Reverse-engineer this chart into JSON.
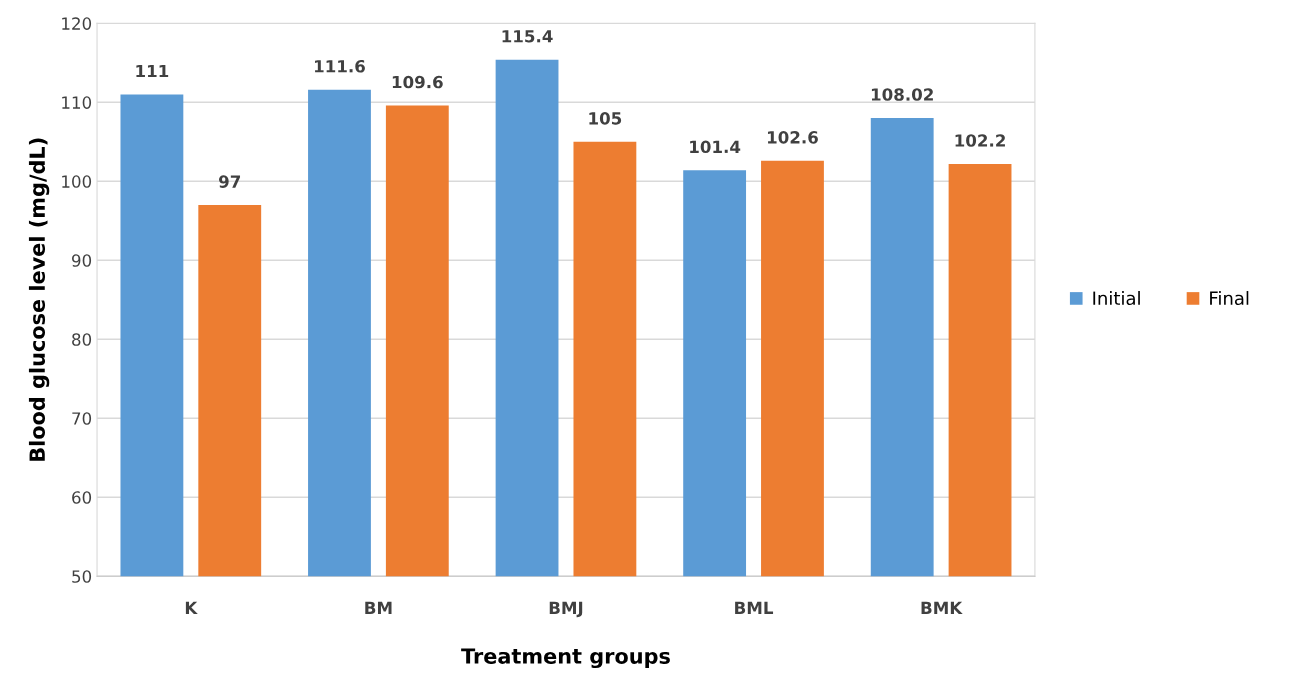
{
  "chart_data": {
    "type": "bar",
    "xlabel": "Treatment groups",
    "ylabel": "Blood glucose level (mg/dL)",
    "categories": [
      "K",
      "BM",
      "BMJ",
      "BML",
      "BMK"
    ],
    "series": [
      {
        "name": "Initial",
        "color": "#5b9bd5",
        "values": [
          111,
          111.6,
          115.4,
          101.4,
          108.02
        ]
      },
      {
        "name": "Final",
        "color": "#ed7d31",
        "values": [
          97,
          109.6,
          105,
          102.6,
          102.2
        ]
      }
    ],
    "ylim": [
      50,
      120
    ],
    "yticks": [
      50,
      60,
      70,
      80,
      90,
      100,
      110,
      120
    ],
    "grid": "y",
    "legend": "right",
    "data_labels": true
  }
}
